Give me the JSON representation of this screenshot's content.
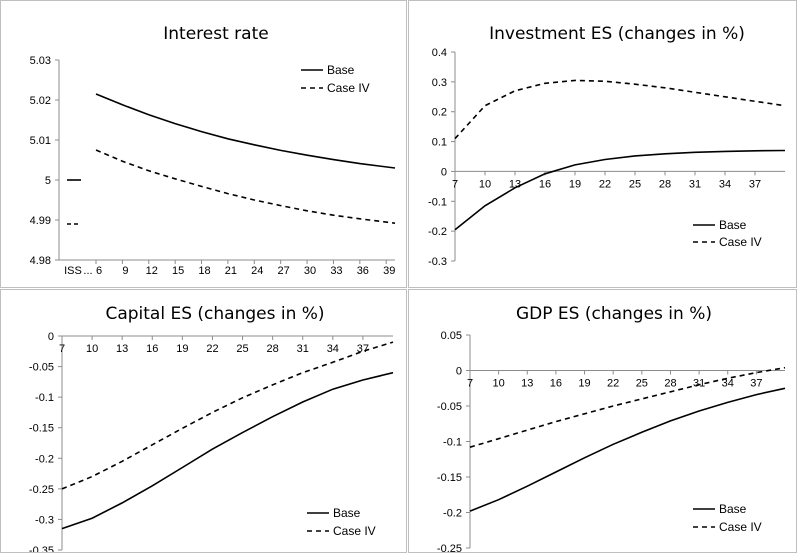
{
  "panels": [
    {
      "title": "Interest rate",
      "chart_data": {
        "type": "line",
        "ylim": [
          4.98,
          5.03
        ],
        "yticks": [
          "4.98",
          "4.99",
          "5",
          "5.01",
          "5.02",
          "5.03"
        ],
        "xticks": [
          "ISS",
          "...",
          "6",
          "9",
          "12",
          "15",
          "18",
          "21",
          "24",
          "27",
          "30",
          "33",
          "36",
          "39"
        ],
        "x": [
          6,
          9,
          12,
          15,
          18,
          21,
          24,
          27,
          30,
          33,
          36,
          40
        ],
        "steady_state": [
          {
            "name": "Base",
            "value": 5.0
          },
          {
            "name": "Case IV",
            "value": 4.989
          }
        ],
        "series": [
          {
            "name": "Base",
            "style": "solid",
            "values": [
              5.0215,
              5.0188,
              5.0163,
              5.0141,
              5.0121,
              5.0103,
              5.0088,
              5.0074,
              5.0062,
              5.0051,
              5.0041,
              5.003
            ]
          },
          {
            "name": "Case IV",
            "style": "dashed",
            "values": [
              5.0075,
              5.0047,
              5.0023,
              5.0003,
              4.9984,
              4.9966,
              4.995,
              4.9936,
              4.9923,
              4.9912,
              4.9903,
              4.9892
            ]
          }
        ],
        "legend": "top-right"
      }
    },
    {
      "title": "Investment ES (changes in %)",
      "chart_data": {
        "type": "line",
        "ylim": [
          -0.3,
          0.4
        ],
        "yticks": [
          "-0.3",
          "-0.2",
          "-0.1",
          "0",
          "0.1",
          "0.2",
          "0.3",
          "0.4"
        ],
        "xticks": [
          "7",
          "10",
          "13",
          "16",
          "19",
          "22",
          "25",
          "28",
          "31",
          "34",
          "37"
        ],
        "x": [
          7,
          10,
          13,
          16,
          19,
          22,
          25,
          28,
          31,
          34,
          37,
          40
        ],
        "series": [
          {
            "name": "Base",
            "style": "solid",
            "values": [
              -0.195,
              -0.115,
              -0.055,
              -0.008,
              0.022,
              0.04,
              0.052,
              0.059,
              0.064,
              0.067,
              0.069,
              0.07
            ]
          },
          {
            "name": "Case IV",
            "style": "dashed",
            "values": [
              0.11,
              0.22,
              0.27,
              0.295,
              0.305,
              0.302,
              0.292,
              0.28,
              0.265,
              0.25,
              0.235,
              0.22
            ]
          }
        ],
        "legend": "bottom-right"
      }
    },
    {
      "title": "Capital ES (changes in %)",
      "chart_data": {
        "type": "line",
        "ylim": [
          -0.35,
          0
        ],
        "yticks": [
          "-0.35",
          "-0.3",
          "-0.25",
          "-0.2",
          "-0.15",
          "-0.1",
          "-0.05",
          "0"
        ],
        "xticks": [
          "7",
          "10",
          "13",
          "16",
          "19",
          "22",
          "25",
          "28",
          "31",
          "34",
          "37"
        ],
        "x": [
          7,
          10,
          13,
          16,
          19,
          22,
          25,
          28,
          31,
          34,
          37,
          40
        ],
        "series": [
          {
            "name": "Base",
            "style": "solid",
            "values": [
              -0.315,
              -0.298,
              -0.273,
              -0.245,
              -0.215,
              -0.185,
              -0.158,
              -0.132,
              -0.108,
              -0.087,
              -0.072,
              -0.06
            ]
          },
          {
            "name": "Case IV",
            "style": "dashed",
            "values": [
              -0.25,
              -0.23,
              -0.205,
              -0.178,
              -0.151,
              -0.125,
              -0.101,
              -0.08,
              -0.06,
              -0.043,
              -0.025,
              -0.01
            ]
          }
        ],
        "legend": "bottom-right"
      }
    },
    {
      "title": "GDP ES (changes in %)",
      "chart_data": {
        "type": "line",
        "ylim": [
          -0.25,
          0.05
        ],
        "yticks": [
          "-0.25",
          "-0.2",
          "-0.15",
          "-0.1",
          "-0.05",
          "0",
          "0.05"
        ],
        "xticks": [
          "7",
          "10",
          "13",
          "16",
          "19",
          "22",
          "25",
          "28",
          "31",
          "34",
          "37"
        ],
        "x": [
          7,
          10,
          13,
          16,
          19,
          22,
          25,
          28,
          31,
          34,
          37,
          40
        ],
        "series": [
          {
            "name": "Base",
            "style": "solid",
            "values": [
              -0.198,
              -0.182,
              -0.163,
              -0.143,
              -0.123,
              -0.104,
              -0.087,
              -0.071,
              -0.057,
              -0.045,
              -0.034,
              -0.025
            ]
          },
          {
            "name": "Case IV",
            "style": "dashed",
            "values": [
              -0.108,
              -0.096,
              -0.084,
              -0.072,
              -0.061,
              -0.05,
              -0.04,
              -0.03,
              -0.02,
              -0.011,
              -0.003,
              0.004
            ]
          }
        ],
        "legend": "bottom-right"
      }
    }
  ]
}
